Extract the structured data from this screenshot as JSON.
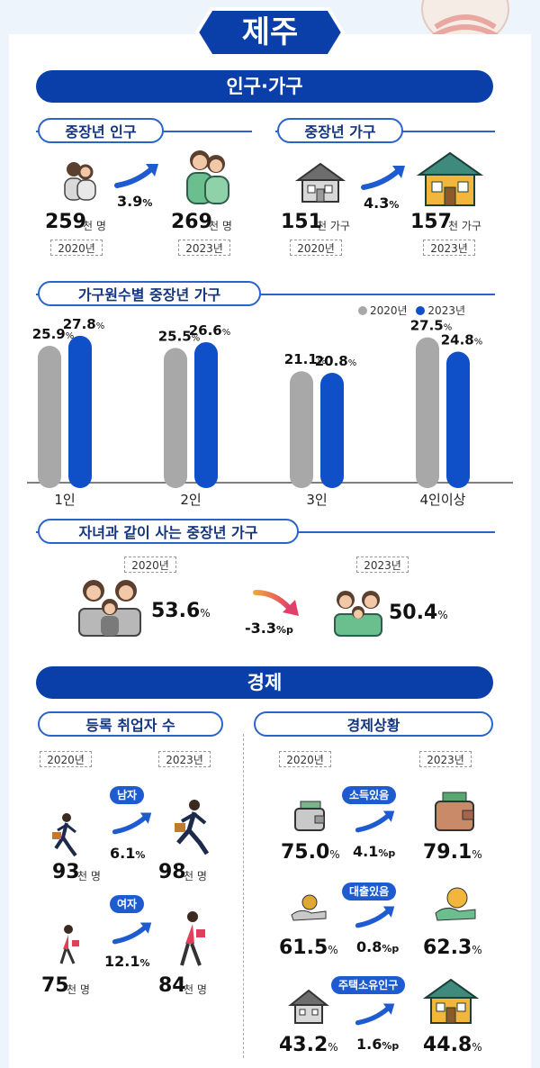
{
  "region": "제주",
  "sections": {
    "population": "인구·가구",
    "economy": "경제"
  },
  "pop_household": {
    "population_title": "중장년 인구",
    "household_title": "중장년 가구",
    "pop_2020": {
      "value": "259",
      "unit": "천 명",
      "year": "2020년"
    },
    "pop_2023": {
      "value": "269",
      "unit": "천 명",
      "year": "2023년"
    },
    "pop_rate": {
      "value": "3.9",
      "unit": "%"
    },
    "hh_2020": {
      "value": "151",
      "unit": "천 가구",
      "year": "2020년"
    },
    "hh_2023": {
      "value": "157",
      "unit": "천 가구",
      "year": "2023년"
    },
    "hh_rate": {
      "value": "4.3",
      "unit": "%"
    }
  },
  "chart_data": {
    "type": "bar",
    "title": "가구원수별 중장년 가구",
    "categories": [
      "1인",
      "2인",
      "3인",
      "4인이상"
    ],
    "series": [
      {
        "name": "2020년",
        "values": [
          25.9,
          25.5,
          21.1,
          27.5
        ],
        "color": "#a8a8a8"
      },
      {
        "name": "2023년",
        "values": [
          27.8,
          26.6,
          20.8,
          24.8
        ],
        "color": "#0f4fc8"
      }
    ],
    "value_unit": "%",
    "value_labels": [
      [
        "25.9",
        "27.8"
      ],
      [
        "25.5",
        "26.6"
      ],
      [
        "21.1",
        "20.8"
      ],
      [
        "27.5",
        "24.8"
      ]
    ],
    "legend_position": "top-right",
    "ylim": [
      0,
      30
    ]
  },
  "children": {
    "title": "자녀과 같이 사는 중장년 가구",
    "year_2020": "2020년",
    "year_2023": "2023년",
    "value_2020": "53.6",
    "value_2023": "50.4",
    "unit": "%",
    "change": "-3.3",
    "change_unit": "%p"
  },
  "employment": {
    "title": "등록 취업자 수",
    "year_2020": "2020년",
    "year_2023": "2023년",
    "male_tag": "남자",
    "female_tag": "여자",
    "male_2020": "93",
    "male_2023": "98",
    "male_rate": "6.1",
    "female_2020": "75",
    "female_2023": "84",
    "female_rate": "12.1",
    "unit": "천 명",
    "rate_unit": "%"
  },
  "economic_status": {
    "title": "경제상황",
    "year_2020": "2020년",
    "year_2023": "2023년",
    "income_tag": "소득있음",
    "income_2020": "75.0",
    "income_2023": "79.1",
    "income_change": "4.1",
    "loan_tag": "대출있음",
    "loan_2020": "61.5",
    "loan_2023": "62.3",
    "loan_change": "0.8",
    "house_tag": "주택소유인구",
    "house_2020": "43.2",
    "house_2023": "44.8",
    "house_change": "1.6",
    "unit": "%",
    "change_unit": "%p"
  },
  "colors": {
    "navy": "#0a3ea8",
    "blue": "#0f4fc8",
    "gray": "#a8a8a8",
    "teal": "#3e8a7c",
    "yellow": "#f2b63c"
  }
}
